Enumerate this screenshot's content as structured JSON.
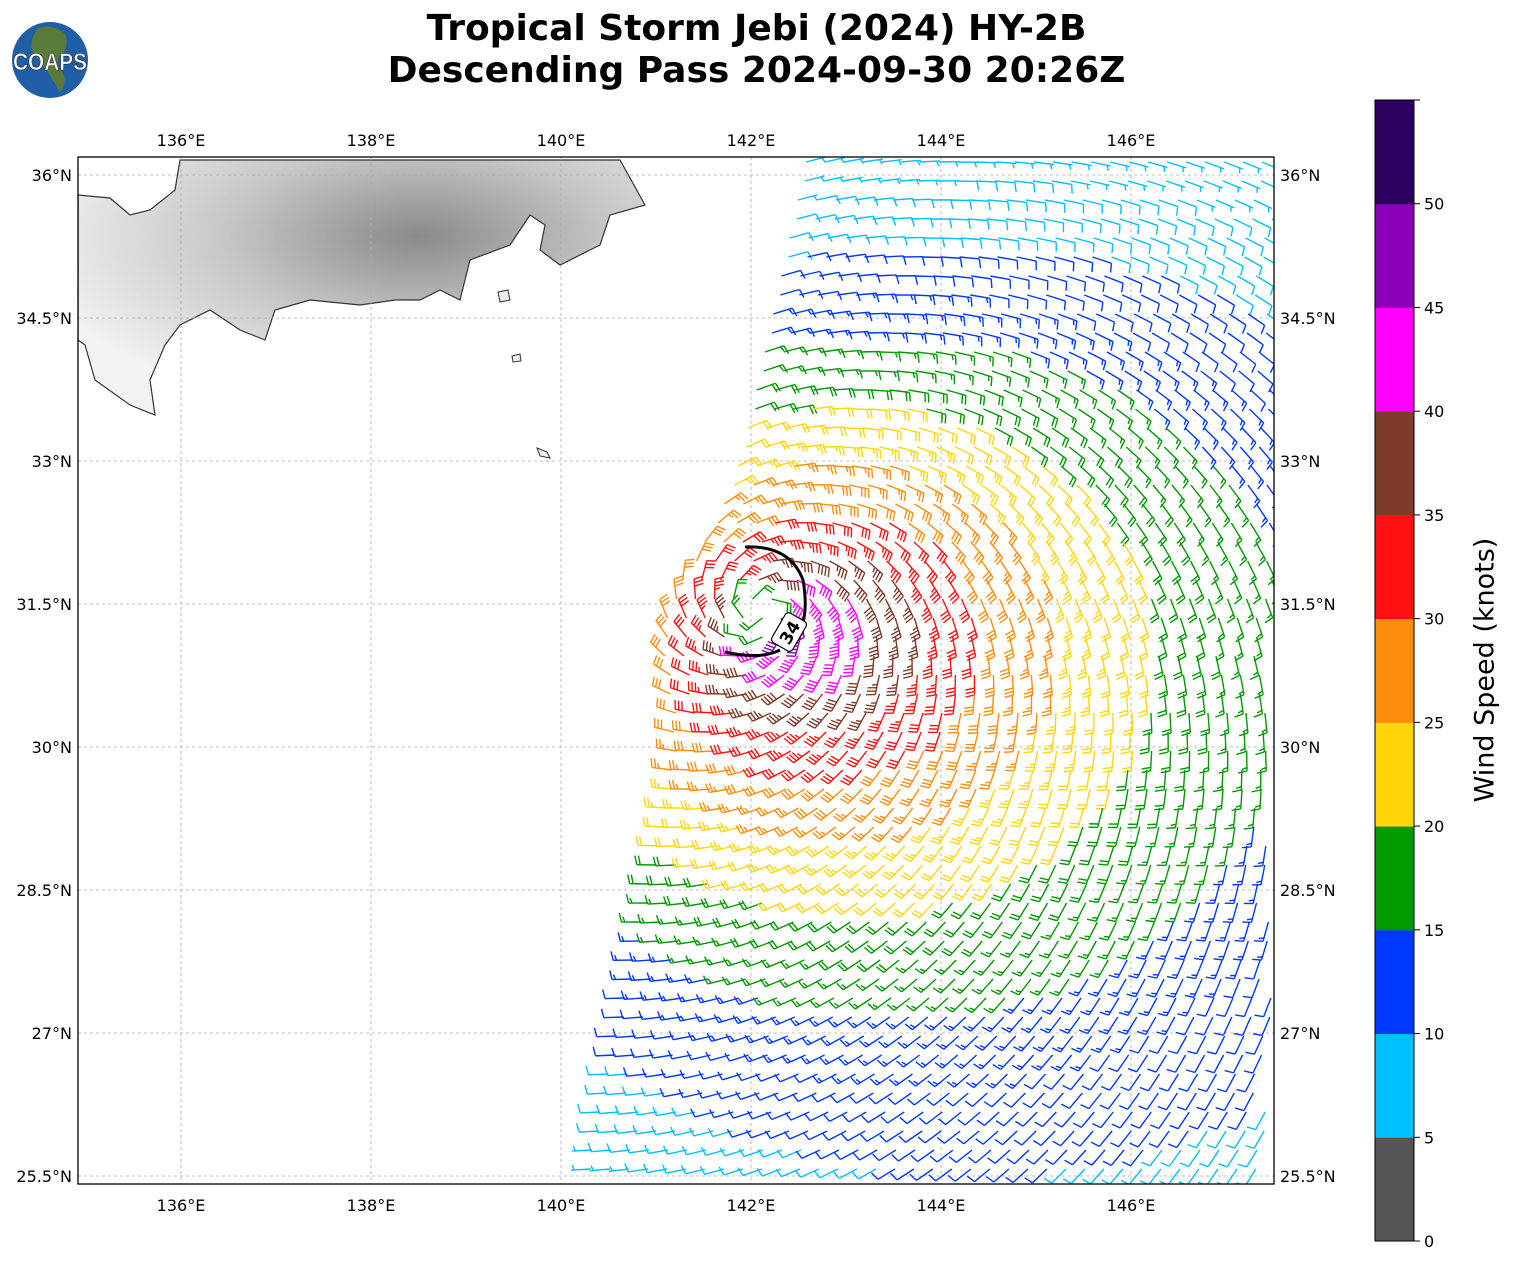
{
  "title_line1": "Tropical Storm Jebi (2024) HY-2B",
  "title_line2": "Descending Pass 2024-09-30 20:26Z",
  "logo_text": "COAPS",
  "chart_data": {
    "type": "wind-barb-map",
    "title": "Tropical Storm Jebi (2024) HY-2B Descending Pass 2024-09-30 20:26Z",
    "lon_range": [
      134.9,
      147.5
    ],
    "lat_range": [
      25.4,
      36.2
    ],
    "lon_ticks": [
      136,
      138,
      140,
      142,
      144,
      146
    ],
    "lon_tick_labels": [
      "136°E",
      "138°E",
      "140°E",
      "142°E",
      "144°E",
      "146°E"
    ],
    "lat_ticks": [
      25.5,
      27,
      28.5,
      30,
      31.5,
      33,
      34.5,
      36
    ],
    "lat_tick_labels": [
      "25.5°N",
      "27°N",
      "28.5°N",
      "30°N",
      "31.5°N",
      "33°N",
      "34.5°N",
      "36°N"
    ],
    "grid": true,
    "storm_center": {
      "lon": 142.1,
      "lat": 31.4
    },
    "max_wind_kt": 43,
    "contour": {
      "level": 34,
      "label": "34"
    },
    "colorbar": {
      "label": "Wind Speed (knots)",
      "ticks": [
        0,
        5,
        10,
        15,
        20,
        25,
        30,
        35,
        40,
        45,
        50
      ],
      "range": [
        0,
        55
      ],
      "colors": [
        "#555555",
        "#00bfff",
        "#0038ff",
        "#009900",
        "#ffd60a",
        "#ff8c0a",
        "#ff1010",
        "#7f3b2a",
        "#ff00ff",
        "#8b00b8",
        "#2d0060"
      ]
    }
  }
}
